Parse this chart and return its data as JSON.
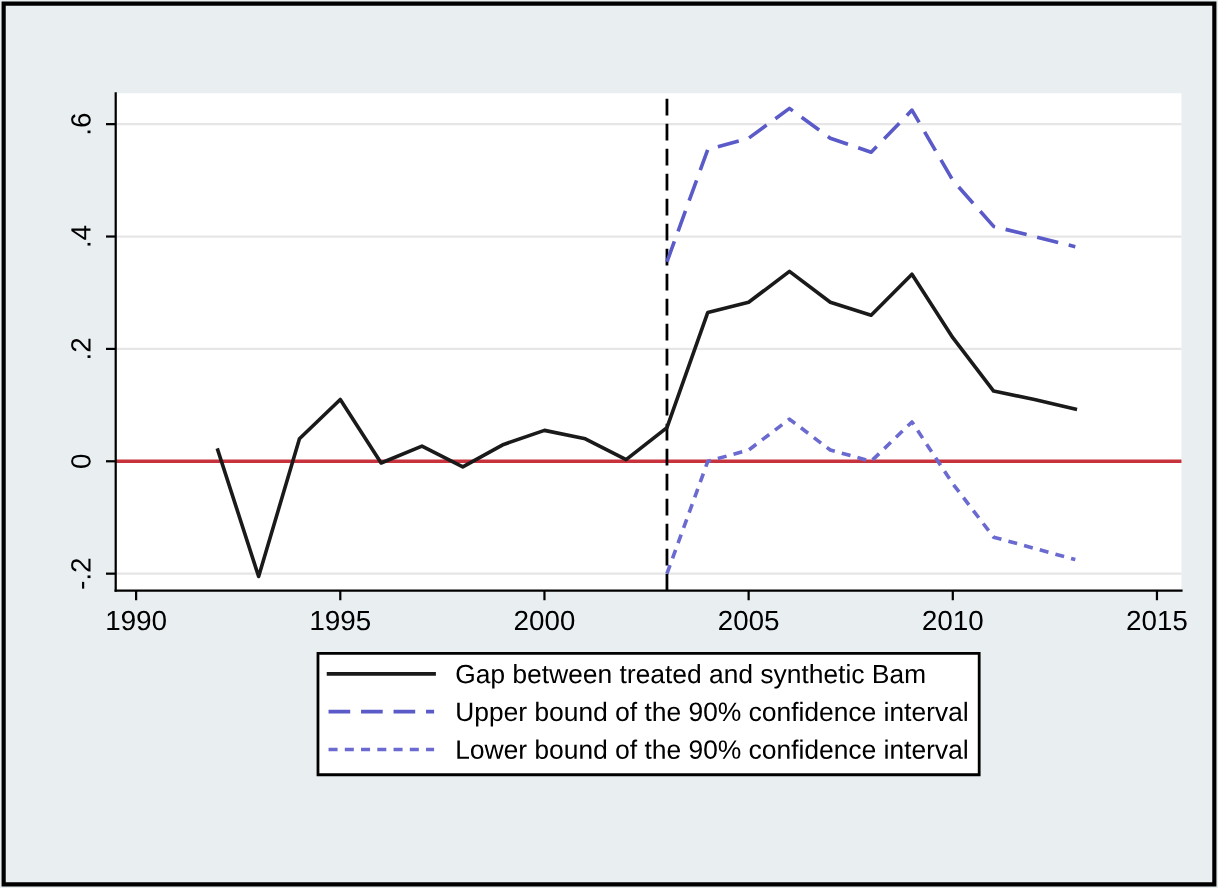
{
  "chart_data": {
    "type": "line",
    "x": [
      1992,
      1993,
      1994,
      1995,
      1996,
      1997,
      1998,
      1999,
      2000,
      2001,
      2002,
      2003,
      2004,
      2005,
      2006,
      2007,
      2008,
      2009,
      2010,
      2011,
      2012,
      2013
    ],
    "series": [
      {
        "name": "Gap between treated and synthetic Bam",
        "color": "#1a1a1a",
        "line_style": "solid",
        "values": [
          0.02,
          -0.205,
          0.04,
          0.11,
          -0.003,
          0.027,
          -0.01,
          0.03,
          0.055,
          0.04,
          0.003,
          0.06,
          0.265,
          0.283,
          0.338,
          0.283,
          0.26,
          0.333,
          0.22,
          0.125,
          0.11,
          0.093
        ]
      },
      {
        "name": "Upper bound of the 90% confidence interval",
        "color": "#5a5ac8",
        "line_style": "dashed",
        "x": [
          2003,
          2004,
          2005,
          2006,
          2007,
          2008,
          2009,
          2010,
          2011,
          2012,
          2013
        ],
        "values": [
          0.355,
          0.555,
          0.575,
          0.628,
          0.575,
          0.55,
          0.625,
          0.5,
          0.418,
          0.4,
          0.382
        ]
      },
      {
        "name": "Lower bound of the 90% confidence interval",
        "color": "#6a6ad0",
        "line_style": "dotted",
        "x": [
          2003,
          2004,
          2005,
          2006,
          2007,
          2008,
          2009,
          2010,
          2011,
          2012,
          2013
        ],
        "values": [
          -0.2,
          0.0,
          0.02,
          0.075,
          0.02,
          0.0,
          0.07,
          -0.04,
          -0.135,
          -0.155,
          -0.175
        ]
      }
    ],
    "xlim": [
      1989.5,
      2015.6
    ],
    "xticks": [
      1990,
      1995,
      2000,
      2005,
      2010,
      2015
    ],
    "ylim": [
      -0.23,
      0.655
    ],
    "yticks": [
      {
        "value": -0.2,
        "label": "-.2"
      },
      0,
      {
        "value": 0.2,
        "label": ".2"
      },
      {
        "value": 0.4,
        "label": ".4"
      },
      {
        "value": 0.6,
        "label": ".6"
      }
    ],
    "ref_lines": [
      {
        "axis": "y",
        "value": 0,
        "color": "#c8323c",
        "line_style": "solid"
      },
      {
        "axis": "x",
        "value": 2003,
        "color": "#000000",
        "line_style": "dashed"
      }
    ],
    "grid": "y",
    "legend": "bottom",
    "marker": "none"
  }
}
